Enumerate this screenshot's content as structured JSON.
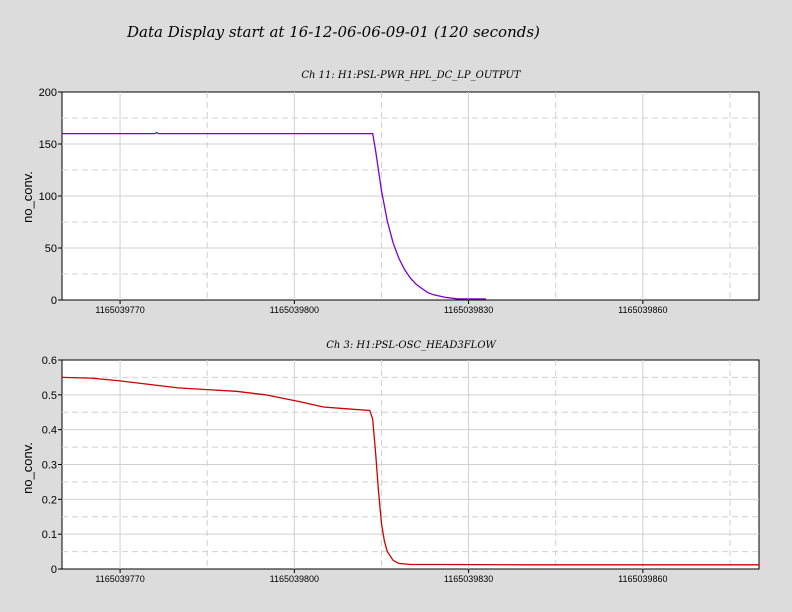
{
  "page": {
    "title": "Data Display start at 16-12-06-06-09-01 (120 seconds)"
  },
  "chart_data": [
    {
      "type": "line",
      "title": "Ch 11: H1:PSL-PWR_HPL_DC_LP_OUTPUT",
      "ylabel": "no_conv.",
      "xlabel": "",
      "xlim": [
        1165039760,
        1165039880
      ],
      "ylim": [
        0,
        200
      ],
      "xticks": [
        1165039770,
        1165039800,
        1165039830,
        1165039860
      ],
      "xtick_labels": [
        "1165039770",
        "1165039800",
        "1165039830",
        "1165039860"
      ],
      "yticks": [
        0,
        50,
        100,
        150,
        200
      ],
      "ytick_labels": [
        "0",
        "50",
        "100",
        "150",
        "200"
      ],
      "grid": true,
      "color": "#7a00cc",
      "series": [
        {
          "x": [
            1165039760,
            1165039776,
            1165039776.3,
            1165039776.6,
            1165039813.5,
            1165039814,
            1165039815,
            1165039816,
            1165039817,
            1165039818,
            1165039819,
            1165039820,
            1165039821,
            1165039822,
            1165039823,
            1165039824,
            1165039826,
            1165039828,
            1165039833
          ],
          "y": [
            160,
            160,
            161,
            160,
            160,
            143,
            105,
            76,
            55,
            40,
            29,
            21,
            15,
            11,
            7,
            5,
            2.5,
            1.2,
            1
          ]
        }
      ]
    },
    {
      "type": "line",
      "title": "Ch 3: H1:PSL-OSC_HEAD3FLOW",
      "ylabel": "no_conv.",
      "xlabel": "",
      "xlim": [
        1165039760,
        1165039880
      ],
      "ylim": [
        0,
        0.6
      ],
      "xticks": [
        1165039770,
        1165039800,
        1165039830,
        1165039860
      ],
      "xtick_labels": [
        "1165039770",
        "1165039800",
        "1165039830",
        "1165039860"
      ],
      "yticks": [
        0,
        0.1,
        0.2,
        0.3,
        0.4,
        0.5,
        0.6
      ],
      "ytick_labels": [
        "0",
        "0.1",
        "0.2",
        "0.3",
        "0.4",
        "0.5",
        "0.6"
      ],
      "grid": true,
      "color": "#cc0000",
      "series": [
        {
          "x": [
            1165039760,
            1165039765,
            1165039770,
            1165039775,
            1165039780,
            1165039785,
            1165039790,
            1165039795,
            1165039798,
            1165039801,
            1165039805,
            1165039809,
            1165039813,
            1165039813.5,
            1165039814,
            1165039814.5,
            1165039815,
            1165039815.5,
            1165039816,
            1165039817,
            1165039818,
            1165039820,
            1165039825,
            1165039840,
            1165039860,
            1165039880
          ],
          "y": [
            0.55,
            0.548,
            0.54,
            0.53,
            0.52,
            0.515,
            0.51,
            0.5,
            0.49,
            0.48,
            0.465,
            0.46,
            0.455,
            0.43,
            0.33,
            0.22,
            0.13,
            0.08,
            0.05,
            0.025,
            0.016,
            0.013,
            0.013,
            0.012,
            0.012,
            0.012
          ]
        }
      ]
    }
  ]
}
